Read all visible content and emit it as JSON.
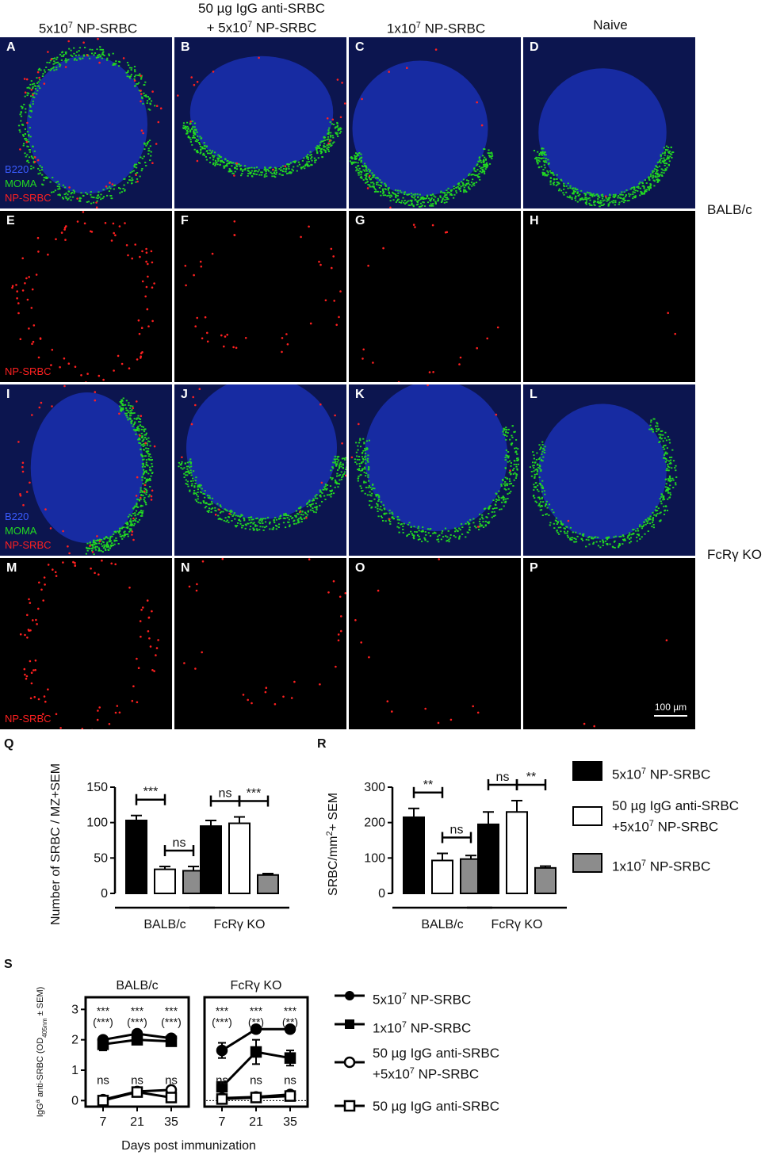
{
  "columns": [
    {
      "pre": "5x10",
      "sup": "7",
      "post": " NP-SRBC"
    },
    {
      "line1": "50 µg IgG anti-SRBC",
      "pre": "+ 5x10",
      "sup": "7",
      "post": " NP-SRBC"
    },
    {
      "pre": "1x10",
      "sup": "7",
      "post": " NP-SRBC"
    },
    {
      "pre": "Naive",
      "sup": "",
      "post": ""
    }
  ],
  "panel_letters": [
    "A",
    "B",
    "C",
    "D",
    "E",
    "F",
    "G",
    "H",
    "I",
    "J",
    "K",
    "L",
    "M",
    "N",
    "O",
    "P"
  ],
  "stain_labels": {
    "b220": "B220",
    "moma": "MOMA",
    "np": "NP-SRBC"
  },
  "row_labels": {
    "balbc": "BALB/c",
    "fcr": "FcRγ KO"
  },
  "scale_bar": "100 µm",
  "colors": {
    "b220": "#1a2fb0",
    "moma": "#22d822",
    "np": "#ff2020",
    "black_bar": "#000000",
    "gray_bar": "#8c8c8c"
  },
  "figure_letters": {
    "q": "Q",
    "r": "R",
    "s": "S"
  },
  "bar_legend": [
    {
      "pre": "5x10",
      "sup": "7",
      "post": " NP-SRBC",
      "fill": "black"
    },
    {
      "line1": "50 µg IgG anti-SRBC",
      "pre": "+5x10",
      "sup": "7",
      "post": " NP-SRBC",
      "fill": "white"
    },
    {
      "pre": "1x10",
      "sup": "7",
      "post": " NP-SRBC",
      "fill": "gray"
    }
  ],
  "line_legend": [
    {
      "pre": "5x10",
      "sup": "7",
      "post": " NP-SRBC",
      "marker": "filled-circle"
    },
    {
      "pre": "1x10",
      "sup": "7",
      "post": " NP-SRBC",
      "marker": "filled-square"
    },
    {
      "line1": "50 µg IgG anti-SRBC",
      "pre": "+5x10",
      "sup": "7",
      "post": " NP-SRBC",
      "marker": "open-circle"
    },
    {
      "pre": "50 µg IgG anti-SRBC",
      "sup": "",
      "post": "",
      "marker": "open-square"
    }
  ],
  "chart_data": [
    {
      "type": "bar",
      "id": "Q",
      "ylabel": "Number of SRBC / MZ+SEM",
      "ylim": [
        0,
        150
      ],
      "yticks": [
        0,
        50,
        100,
        150
      ],
      "groups": [
        "BALB/c",
        "FcRγ KO"
      ],
      "series": [
        {
          "values": [
            103,
            95
          ],
          "errors": [
            7,
            8
          ]
        },
        {
          "values": [
            34,
            99
          ],
          "errors": [
            4,
            9
          ]
        },
        {
          "values": [
            32,
            26
          ],
          "errors": [
            6,
            2
          ]
        }
      ],
      "comparisons": [
        {
          "label": "***",
          "group": 0,
          "from": 0,
          "to": 1
        },
        {
          "label": "ns",
          "group": 0,
          "from": 1,
          "to": 2
        },
        {
          "label": "ns",
          "group": 1,
          "from": 0,
          "to": 1
        },
        {
          "label": "***",
          "group": 1,
          "from": 1,
          "to": 2
        }
      ]
    },
    {
      "type": "bar",
      "id": "R",
      "ylabel": "SRBC/mm",
      "ylabel_sup": "2",
      "ylabel_post": "+ SEM",
      "ylim": [
        0,
        300
      ],
      "yticks": [
        0,
        100,
        200,
        300
      ],
      "groups": [
        "BALB/c",
        "FcRγ KO"
      ],
      "series": [
        {
          "values": [
            215,
            195
          ],
          "errors": [
            25,
            35
          ]
        },
        {
          "values": [
            93,
            230
          ],
          "errors": [
            20,
            32
          ]
        },
        {
          "values": [
            97,
            72
          ],
          "errors": [
            10,
            5
          ]
        }
      ],
      "comparisons": [
        {
          "label": "**",
          "group": 0,
          "from": 0,
          "to": 1
        },
        {
          "label": "ns",
          "group": 0,
          "from": 1,
          "to": 2
        },
        {
          "label": "ns",
          "group": 1,
          "from": 0,
          "to": 1
        },
        {
          "label": "**",
          "group": 1,
          "from": 1,
          "to": 2
        }
      ]
    },
    {
      "type": "line",
      "id": "S",
      "panels": [
        "BALB/c",
        "FcRγ KO"
      ],
      "xlabel": "Days post immunization",
      "ylabel": "IgG",
      "ylabel_sup": "a",
      "ylabel_mid": " anti-SRBC (OD",
      "ylabel_sub": "405nm",
      "ylabel_post": " ± SEM)",
      "x": [
        7,
        21,
        35
      ],
      "ylim": [
        -0.2,
        3.4
      ],
      "yticks": [
        0,
        1,
        2,
        3
      ],
      "series_by_panel": [
        [
          {
            "marker": "filled-circle",
            "values": [
              2.0,
              2.2,
              2.05
            ],
            "errors": [
              0.1,
              0.1,
              0.1
            ]
          },
          {
            "marker": "filled-square",
            "values": [
              1.85,
              2.0,
              1.95
            ],
            "errors": [
              0.2,
              0.15,
              0.1
            ]
          },
          {
            "marker": "open-circle",
            "values": [
              0.03,
              0.3,
              0.35
            ],
            "errors": [
              0.05,
              0.05,
              0.05
            ]
          },
          {
            "marker": "open-square",
            "values": [
              0.0,
              0.28,
              0.1
            ],
            "errors": [
              0.05,
              0.05,
              0.05
            ]
          }
        ],
        [
          {
            "marker": "filled-circle",
            "values": [
              1.65,
              2.35,
              2.35
            ],
            "errors": [
              0.25,
              0.12,
              0.05
            ]
          },
          {
            "marker": "filled-square",
            "values": [
              0.45,
              1.6,
              1.4
            ],
            "errors": [
              0.1,
              0.4,
              0.25
            ]
          },
          {
            "marker": "open-circle",
            "values": [
              0.08,
              0.12,
              0.2
            ],
            "errors": [
              0.05,
              0.05,
              0.05
            ]
          },
          {
            "marker": "open-square",
            "values": [
              0.05,
              0.1,
              0.15
            ],
            "errors": [
              0.05,
              0.05,
              0.05
            ]
          }
        ]
      ],
      "annotations_by_panel": [
        [
          {
            "x": 7,
            "top": "***",
            "bottom": "(***)",
            "low": "ns"
          },
          {
            "x": 21,
            "top": "***",
            "bottom": "(***)",
            "low": "ns"
          },
          {
            "x": 35,
            "top": "***",
            "bottom": "(***)",
            "low": "ns"
          }
        ],
        [
          {
            "x": 7,
            "top": "***",
            "bottom": "(***)",
            "low": "ns"
          },
          {
            "x": 21,
            "top": "***",
            "bottom": "(**)",
            "low": "ns"
          },
          {
            "x": 35,
            "top": "***",
            "bottom": "(**)",
            "low": "ns"
          }
        ]
      ]
    }
  ]
}
